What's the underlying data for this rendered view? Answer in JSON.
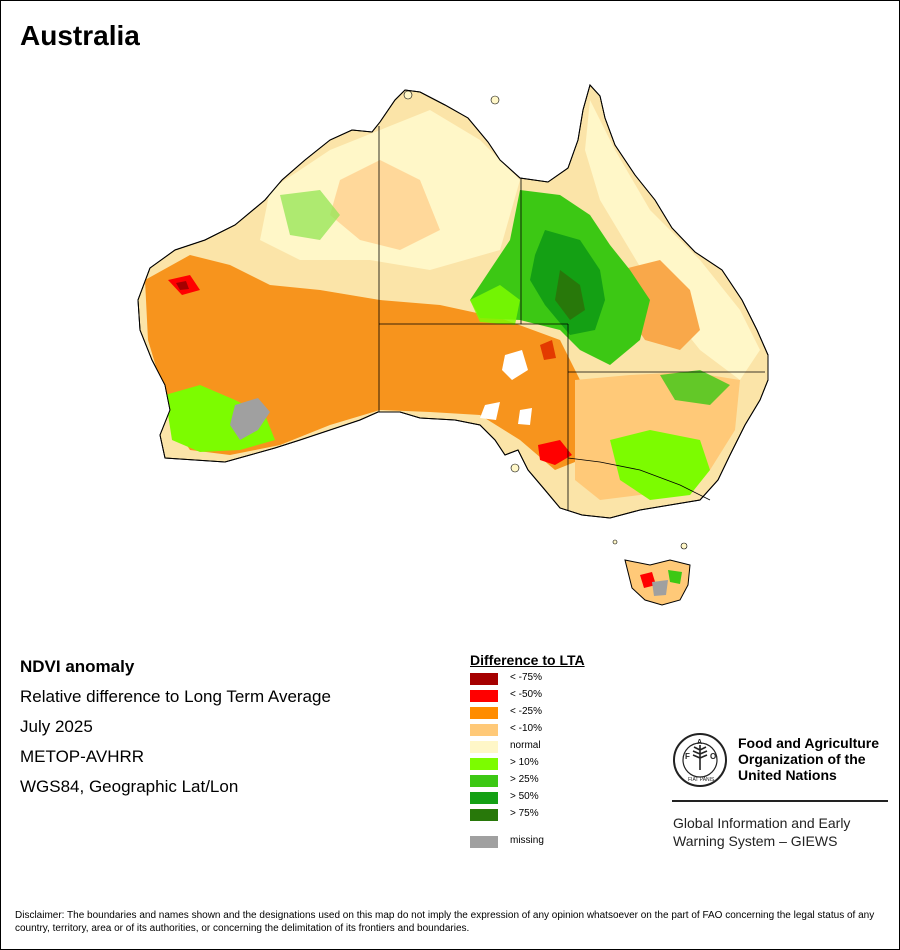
{
  "title": "Australia",
  "info": {
    "line1": "NDVI anomaly",
    "line2": "Relative difference to Long Term Average",
    "line3": "July 2025",
    "line4": "METOP-AVHRR",
    "line5": "WGS84, Geographic Lat/Lon"
  },
  "legend": {
    "title": "Difference to LTA",
    "items": [
      {
        "label": "< -75%",
        "color": "#a50000"
      },
      {
        "label": "< -50%",
        "color": "#ff0000"
      },
      {
        "label": "< -25%",
        "color": "#ff8c00"
      },
      {
        "label": "< -10%",
        "color": "#ffc978"
      },
      {
        "label": "normal",
        "color": "#fff7c8"
      },
      {
        "label": "> 10%",
        "color": "#7cfc00"
      },
      {
        "label": "> 25%",
        "color": "#3cc814"
      },
      {
        "label": "> 50%",
        "color": "#14a014"
      },
      {
        "label": "> 75%",
        "color": "#28780a"
      },
      {
        "label": "missing",
        "color": "#a0a0a0"
      }
    ]
  },
  "fao": {
    "name_line1": "Food and Agriculture",
    "name_line2": "Organization of the",
    "name_line3": "United Nations",
    "logo_text": "FIAT PANIS",
    "giews_line1": "Global Information and Early",
    "giews_line2": "Warning System – GIEWS"
  },
  "disclaimer": "Disclaimer: The boundaries and names shown and the designations used on this map do not imply the expression of any opinion whatsoever on the part of FAO concerning the legal status of any country, territory, area or of its authorities, or concerning the delimitation of its frontiers and boundaries."
}
